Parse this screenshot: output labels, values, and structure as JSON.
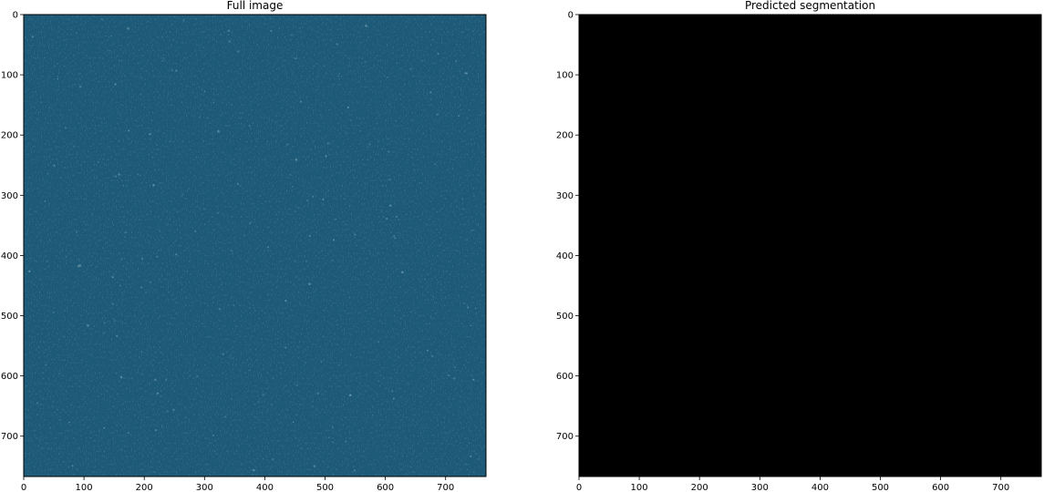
{
  "chart_data": [
    {
      "type": "image",
      "title": "Full image",
      "xlim": [
        0,
        767
      ],
      "ylim": [
        767,
        0
      ],
      "x_ticks": [
        0,
        100,
        200,
        300,
        400,
        500,
        600,
        700
      ],
      "y_ticks": [
        0,
        100,
        200,
        300,
        400,
        500,
        600,
        700
      ],
      "content": "satellite sea surface",
      "dominant_color": "#1d5a78",
      "speckle_color": "#8fb6c4"
    },
    {
      "type": "image",
      "title": "Predicted segmentation",
      "xlim": [
        0,
        767
      ],
      "ylim": [
        767,
        0
      ],
      "x_ticks": [
        0,
        100,
        200,
        300,
        400,
        500,
        600,
        700
      ],
      "y_ticks": [
        0,
        100,
        200,
        300,
        400,
        500,
        600,
        700
      ],
      "content": "empty mask",
      "dominant_color": "#000000"
    }
  ]
}
